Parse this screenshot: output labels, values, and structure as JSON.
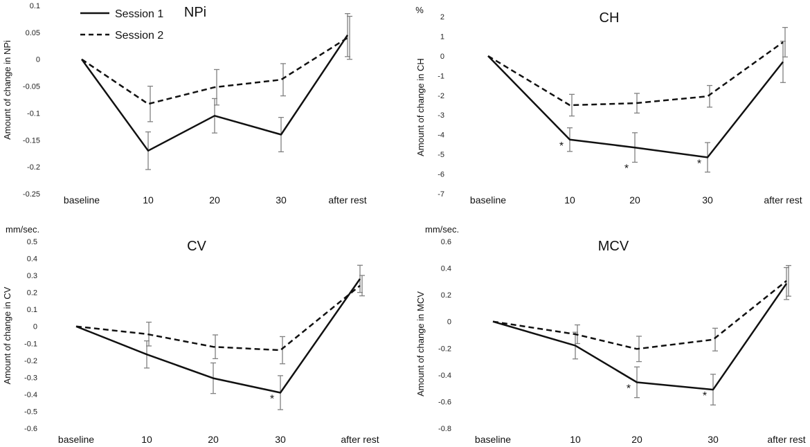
{
  "legend": [
    {
      "name": "Session 1",
      "style": "solid"
    },
    {
      "name": "Session 2",
      "style": "dashed"
    }
  ],
  "colors": {
    "line": "#111111",
    "error_bar": "#808080",
    "background": "#ffffff"
  },
  "chart_data": [
    {
      "id": "npi",
      "type": "line",
      "title": "NPi",
      "unit": "",
      "ylabel": "Amount of change in NPi",
      "categories": [
        "baseline",
        "10",
        "20",
        "30",
        "after rest"
      ],
      "ylim": [
        -0.25,
        0.1
      ],
      "yticks": [
        "0.1",
        "0.05",
        "0",
        "-0.05",
        "-0.1",
        "-0.15",
        "-0.2",
        "-0.25"
      ],
      "yticks_values": [
        0.1,
        0.05,
        0,
        -0.05,
        -0.1,
        -0.15,
        -0.2,
        -0.25
      ],
      "series": [
        {
          "name": "Session 1",
          "values": [
            0,
            -0.17,
            -0.105,
            -0.14,
            0.045
          ],
          "errors": [
            0,
            0.035,
            0.032,
            0.032,
            0.04
          ]
        },
        {
          "name": "Session 2",
          "values": [
            0,
            -0.083,
            -0.052,
            -0.038,
            0.04
          ],
          "errors": [
            0,
            0.033,
            0.033,
            0.03,
            0.04
          ]
        }
      ],
      "significance": []
    },
    {
      "id": "ch",
      "type": "line",
      "title": "CH",
      "unit": "%",
      "ylabel": "Amount of change in CH",
      "categories": [
        "baseline",
        "10",
        "20",
        "30",
        "after rest"
      ],
      "ylim": [
        -7,
        2
      ],
      "yticks": [
        "2",
        "1",
        "0",
        "-1",
        "-2",
        "-3",
        "-4",
        "-5",
        "-6",
        "-7"
      ],
      "yticks_values": [
        2,
        1,
        0,
        -1,
        -2,
        -3,
        -4,
        -5,
        -6,
        -7
      ],
      "series": [
        {
          "name": "Session 1",
          "values": [
            0,
            -4.25,
            -4.65,
            -5.15,
            -0.3
          ],
          "errors": [
            0,
            0.6,
            0.75,
            0.75,
            1.05
          ]
        },
        {
          "name": "Session 2",
          "values": [
            0,
            -2.5,
            -2.4,
            -2.05,
            0.7
          ],
          "errors": [
            0,
            0.55,
            0.5,
            0.55,
            0.75
          ]
        }
      ],
      "significance": [
        {
          "category": "10",
          "value": -4.25,
          "label": "*"
        },
        {
          "category": "20",
          "value": -5.4,
          "label": "*"
        },
        {
          "category": "30",
          "value": -5.15,
          "label": "*"
        }
      ]
    },
    {
      "id": "cv",
      "type": "line",
      "title": "CV",
      "unit": "mm/sec.",
      "ylabel": "Amount of change in CV",
      "categories": [
        "baseline",
        "10",
        "20",
        "30",
        "after rest"
      ],
      "ylim": [
        -0.6,
        0.5
      ],
      "yticks": [
        "0.5",
        "0.4",
        "0.3",
        "0.2",
        "0.1",
        "0",
        "-0.1",
        "-0.2",
        "-0.3",
        "-0.4",
        "-0.5",
        "-0.6"
      ],
      "yticks_values": [
        0.5,
        0.4,
        0.3,
        0.2,
        0.1,
        0,
        -0.1,
        -0.2,
        -0.3,
        -0.4,
        -0.5,
        -0.6
      ],
      "series": [
        {
          "name": "Session 1",
          "values": [
            0,
            -0.165,
            -0.305,
            -0.39,
            0.28
          ],
          "errors": [
            0,
            0.08,
            0.09,
            0.1,
            0.08
          ]
        },
        {
          "name": "Session 2",
          "values": [
            0,
            -0.045,
            -0.12,
            -0.14,
            0.24
          ],
          "errors": [
            0,
            0.07,
            0.07,
            0.08,
            0.06
          ]
        }
      ],
      "significance": [
        {
          "category": "30",
          "value": -0.39,
          "label": "*"
        }
      ]
    },
    {
      "id": "mcv",
      "type": "line",
      "title": "MCV",
      "unit": "mm/sec.",
      "ylabel": "Amount of change in MCV",
      "categories": [
        "baseline",
        "10",
        "20",
        "30",
        "after rest"
      ],
      "ylim": [
        -0.8,
        0.6
      ],
      "yticks": [
        "0.6",
        "0.4",
        "0.2",
        "0",
        "-0.2",
        "-0.4",
        "-0.6",
        "-0.8"
      ],
      "yticks_values": [
        0.6,
        0.4,
        0.2,
        0,
        -0.2,
        -0.4,
        -0.6,
        -0.8
      ],
      "series": [
        {
          "name": "Session 1",
          "values": [
            0,
            -0.18,
            -0.455,
            -0.51,
            0.285
          ],
          "errors": [
            0,
            0.1,
            0.115,
            0.115,
            0.12
          ]
        },
        {
          "name": "Session 2",
          "values": [
            0,
            -0.095,
            -0.205,
            -0.135,
            0.305
          ],
          "errors": [
            0,
            0.07,
            0.095,
            0.085,
            0.115
          ]
        }
      ],
      "significance": [
        {
          "category": "20",
          "value": -0.455,
          "label": "*"
        },
        {
          "category": "30",
          "value": -0.51,
          "label": "*"
        }
      ]
    }
  ]
}
